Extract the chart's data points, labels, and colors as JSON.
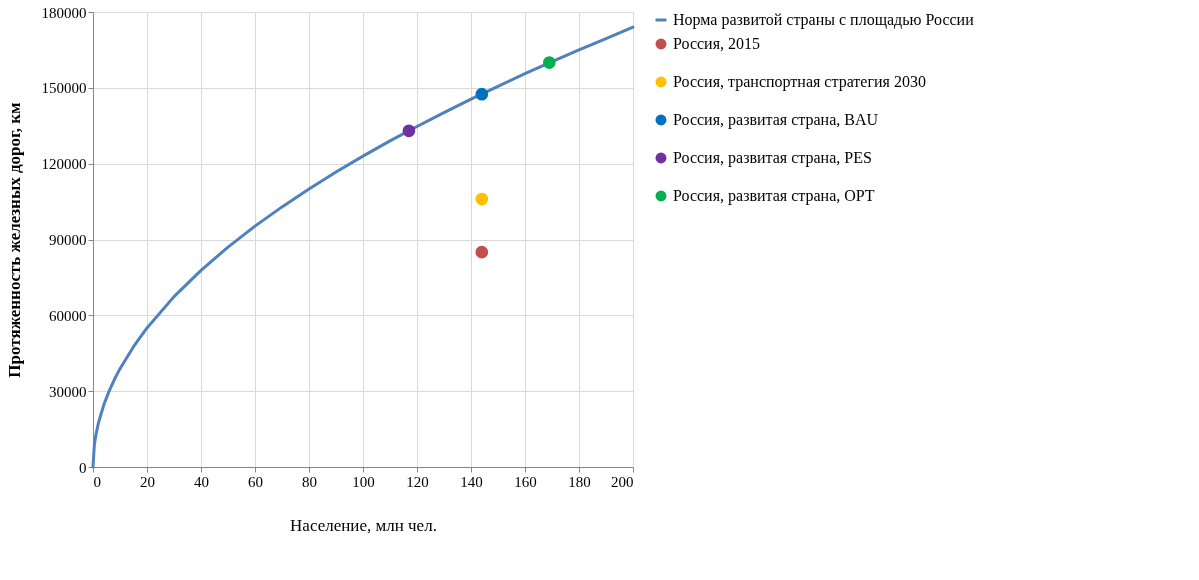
{
  "chart_data": {
    "type": "line",
    "xlabel": "Население, млн чел.",
    "ylabel": "Протяженность железных дорог, км",
    "xlim": [
      0,
      200
    ],
    "xticks": [
      0,
      20,
      40,
      60,
      80,
      100,
      120,
      140,
      160,
      180,
      200
    ],
    "ylim": [
      0,
      180000
    ],
    "yticks": [
      0,
      30000,
      60000,
      90000,
      120000,
      150000,
      180000
    ],
    "grid": true,
    "legend": "right",
    "series": [
      {
        "name": "Норма развитой страны с площадью России",
        "color": "#4f81bd",
        "marker": "none",
        "x": [
          0,
          0.5,
          1,
          2,
          4,
          6,
          8,
          10,
          15,
          20,
          30,
          40,
          50,
          60,
          70,
          80,
          90,
          100,
          110,
          120,
          130,
          140,
          150,
          160,
          170,
          180,
          190,
          200
        ],
        "values": [
          0,
          8700,
          12300,
          17400,
          24600,
          30100,
          34800,
          38900,
          47600,
          55000,
          67400,
          77800,
          87000,
          95300,
          102900,
          110000,
          116700,
          123000,
          129000,
          134700,
          140200,
          145500,
          150600,
          155600,
          160400,
          165000,
          169500,
          174000
        ]
      },
      {
        "name": "Россия, 2015",
        "type": "scatter",
        "color": "#c0504d",
        "marker": "circle",
        "x": [
          144
        ],
        "values": [
          85000
        ]
      },
      {
        "name": "Россия, транспортная стратегия 2030",
        "type": "scatter",
        "color": "#ffc000",
        "marker": "circle",
        "x": [
          144
        ],
        "values": [
          106000
        ]
      },
      {
        "name": "Россия, развитая страна, BAU",
        "type": "scatter",
        "color": "#0070c0",
        "marker": "circle",
        "x": [
          144
        ],
        "values": [
          147500
        ]
      },
      {
        "name": "Россия, развитая страна, PES",
        "type": "scatter",
        "color": "#7030a0",
        "marker": "circle",
        "x": [
          117
        ],
        "values": [
          133000
        ]
      },
      {
        "name": "Россия, развитая страна, OPT",
        "type": "scatter",
        "color": "#00b050",
        "marker": "circle",
        "x": [
          169
        ],
        "values": [
          160000
        ]
      }
    ]
  }
}
